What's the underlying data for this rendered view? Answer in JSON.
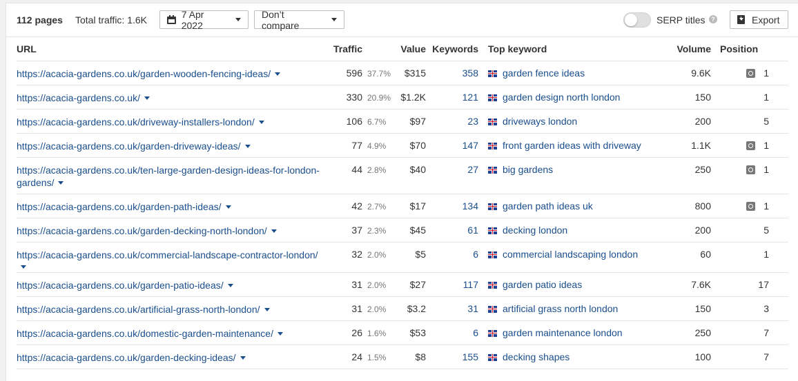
{
  "toolbar": {
    "pages": "112 pages",
    "total_traffic": "Total traffic: 1.6K",
    "date": "7 Apr 2022",
    "compare": "Don’t compare",
    "serp_titles": "SERP titles",
    "help": "?",
    "export": "Export"
  },
  "columns": {
    "url": "URL",
    "traffic": "Traffic",
    "value": "Value",
    "keywords": "Keywords",
    "top_keyword": "Top keyword",
    "volume": "Volume",
    "position": "Position"
  },
  "rows": [
    {
      "url": "https://acacia-gardens.co.uk/garden-wooden-fencing-ideas/",
      "traffic": "596",
      "pct": "37.7%",
      "value": "$315",
      "keywords": "358",
      "top_keyword": "garden fence ideas",
      "volume": "9.6K",
      "serp": true,
      "position": "1"
    },
    {
      "url": "https://acacia-gardens.co.uk/",
      "traffic": "330",
      "pct": "20.9%",
      "value": "$1.2K",
      "keywords": "121",
      "top_keyword": "garden design north london",
      "volume": "150",
      "serp": false,
      "position": "1"
    },
    {
      "url": "https://acacia-gardens.co.uk/driveway-installers-london/",
      "traffic": "106",
      "pct": "6.7%",
      "value": "$97",
      "keywords": "23",
      "top_keyword": "driveways london",
      "volume": "200",
      "serp": false,
      "position": "5"
    },
    {
      "url": "https://acacia-gardens.co.uk/garden-driveway-ideas/",
      "traffic": "77",
      "pct": "4.9%",
      "value": "$70",
      "keywords": "147",
      "top_keyword": "front garden ideas with driveway",
      "volume": "1.1K",
      "serp": true,
      "position": "1"
    },
    {
      "url": "https://acacia-gardens.co.uk/ten-large-garden-design-ideas-for-london-gardens/",
      "traffic": "44",
      "pct": "2.8%",
      "value": "$40",
      "keywords": "27",
      "top_keyword": "big gardens",
      "volume": "250",
      "serp": true,
      "position": "1"
    },
    {
      "url": "https://acacia-gardens.co.uk/garden-path-ideas/",
      "traffic": "42",
      "pct": "2.7%",
      "value": "$17",
      "keywords": "134",
      "top_keyword": "garden path ideas uk",
      "volume": "800",
      "serp": true,
      "position": "1"
    },
    {
      "url": "https://acacia-gardens.co.uk/garden-decking-north-london/",
      "traffic": "37",
      "pct": "2.3%",
      "value": "$45",
      "keywords": "61",
      "top_keyword": "decking london",
      "volume": "200",
      "serp": false,
      "position": "5"
    },
    {
      "url": "https://acacia-gardens.co.uk/commercial-landscape-contractor-london/",
      "traffic": "32",
      "pct": "2.0%",
      "value": "$5",
      "keywords": "6",
      "top_keyword": "commercial landscaping london",
      "volume": "60",
      "serp": false,
      "position": "1"
    },
    {
      "url": "https://acacia-gardens.co.uk/garden-patio-ideas/",
      "traffic": "31",
      "pct": "2.0%",
      "value": "$27",
      "keywords": "117",
      "top_keyword": "garden patio ideas",
      "volume": "7.6K",
      "serp": false,
      "position": "17"
    },
    {
      "url": "https://acacia-gardens.co.uk/artificial-grass-north-london/",
      "traffic": "31",
      "pct": "2.0%",
      "value": "$3.2",
      "keywords": "31",
      "top_keyword": "artificial grass north london",
      "volume": "150",
      "serp": false,
      "position": "3"
    },
    {
      "url": "https://acacia-gardens.co.uk/domestic-garden-maintenance/",
      "traffic": "26",
      "pct": "1.6%",
      "value": "$53",
      "keywords": "6",
      "top_keyword": "garden maintenance london",
      "volume": "250",
      "serp": false,
      "position": "7"
    },
    {
      "url": "https://acacia-gardens.co.uk/garden-decking-ideas/",
      "traffic": "24",
      "pct": "1.5%",
      "value": "$8",
      "keywords": "155",
      "top_keyword": "decking shapes",
      "volume": "100",
      "serp": false,
      "position": "7"
    }
  ],
  "icons": {
    "date": "calendar-icon",
    "export": "download-icon",
    "flag": "uk-flag-icon",
    "serp": "serp-features-icon"
  },
  "colors": {
    "link": "#1a4e8c",
    "muted": "#777777",
    "border": "#e4e4e4"
  }
}
